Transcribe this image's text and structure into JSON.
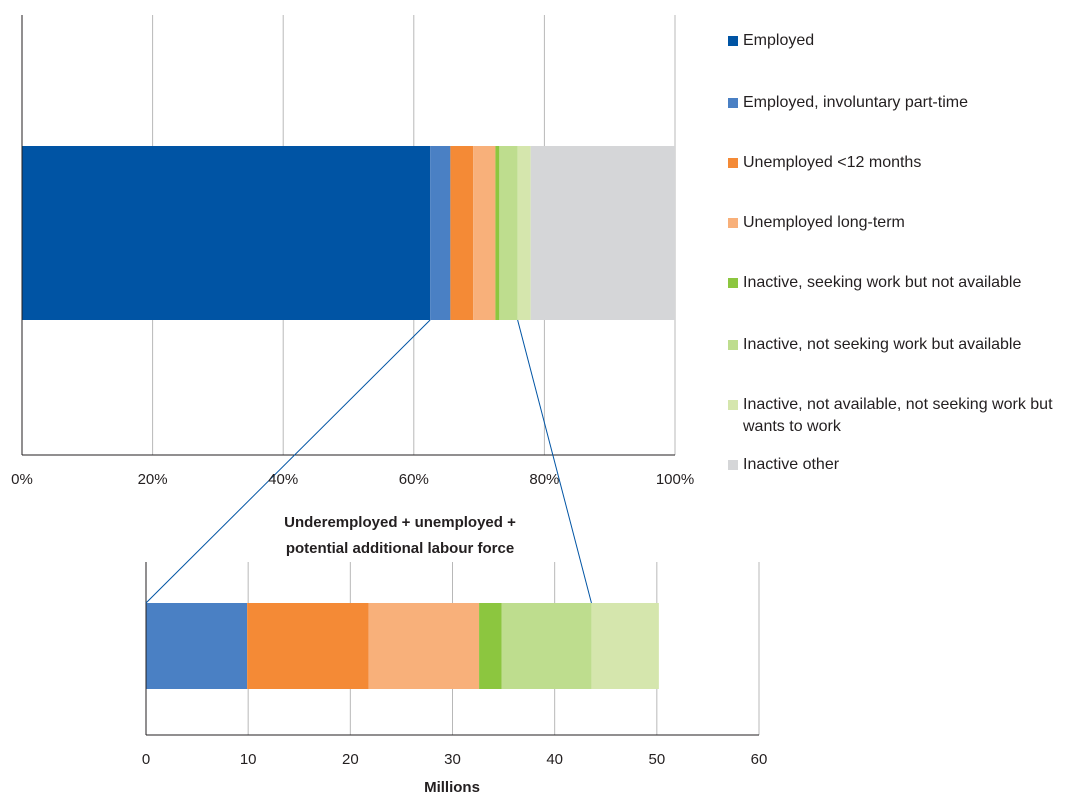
{
  "chart_data": [
    {
      "type": "bar",
      "orientation": "horizontal",
      "stacked": true,
      "xlim": [
        0,
        100
      ],
      "x_ticks": [
        "0%",
        "20%",
        "40%",
        "60%",
        "80%",
        "100%"
      ],
      "grid": true,
      "legend_position": "right",
      "series": [
        {
          "name": "Employed",
          "value": 62.5,
          "color": "#0054a4"
        },
        {
          "name": "Employed, involuntary part-time",
          "value": 3.1,
          "color": "#4a80c4"
        },
        {
          "name": "Unemployed <12 months",
          "value": 3.5,
          "color": "#f48a36"
        },
        {
          "name": "Unemployed long-term",
          "value": 3.4,
          "color": "#f8b07a"
        },
        {
          "name": "Inactive, seeking work but not available",
          "value": 0.6,
          "color": "#8cc63f"
        },
        {
          "name": "Inactive, not seeking work but available",
          "value": 2.8,
          "color": "#bedd8e"
        },
        {
          "name": "Inactive, not available, not seeking work but wants to work",
          "value": 2.0,
          "color": "#d5e6ad"
        },
        {
          "name": "Inactive other",
          "value": 22.1,
          "color": "#d5d6d8"
        }
      ]
    },
    {
      "type": "bar",
      "orientation": "horizontal",
      "stacked": true,
      "title": "Underemployed + unemployed + potential additional labour force",
      "title_lines": [
        "Underemployed + unemployed +",
        "potential additional labour force"
      ],
      "xlabel": "Millions",
      "xlim": [
        0,
        60
      ],
      "x_ticks": [
        "0",
        "10",
        "20",
        "30",
        "40",
        "50",
        "60"
      ],
      "grid": true,
      "series": [
        {
          "name": "Employed, involuntary part-time",
          "value": 9.9,
          "color": "#4a80c4"
        },
        {
          "name": "Unemployed <12 months",
          "value": 11.9,
          "color": "#f48a36"
        },
        {
          "name": "Unemployed long-term",
          "value": 10.8,
          "color": "#f8b07a"
        },
        {
          "name": "Inactive, seeking work but not available",
          "value": 2.2,
          "color": "#8cc63f"
        },
        {
          "name": "Inactive, not seeking work but available",
          "value": 8.8,
          "color": "#bedd8e"
        },
        {
          "name": "Inactive, not available, not seeking work but wants to work",
          "value": 6.6,
          "color": "#d5e6ad"
        }
      ]
    }
  ],
  "legend": {
    "items": [
      {
        "label": "Employed",
        "color": "#0054a4"
      },
      {
        "label": "Employed, involuntary part-time",
        "color": "#4a80c4"
      },
      {
        "label": "Unemployed <12 months",
        "color": "#f48a36"
      },
      {
        "label": "Unemployed long-term",
        "color": "#f8b07a"
      },
      {
        "label": "Inactive, seeking work but not available",
        "color": "#8cc63f"
      },
      {
        "label": "Inactive, not seeking work but available",
        "color": "#bedd8e"
      },
      {
        "label": "Inactive, not available, not seeking work but wants to work",
        "color": "#d5e6ad"
      },
      {
        "label": "Inactive other",
        "color": "#d5d6d8"
      }
    ]
  },
  "connector_color": "#0054a4"
}
